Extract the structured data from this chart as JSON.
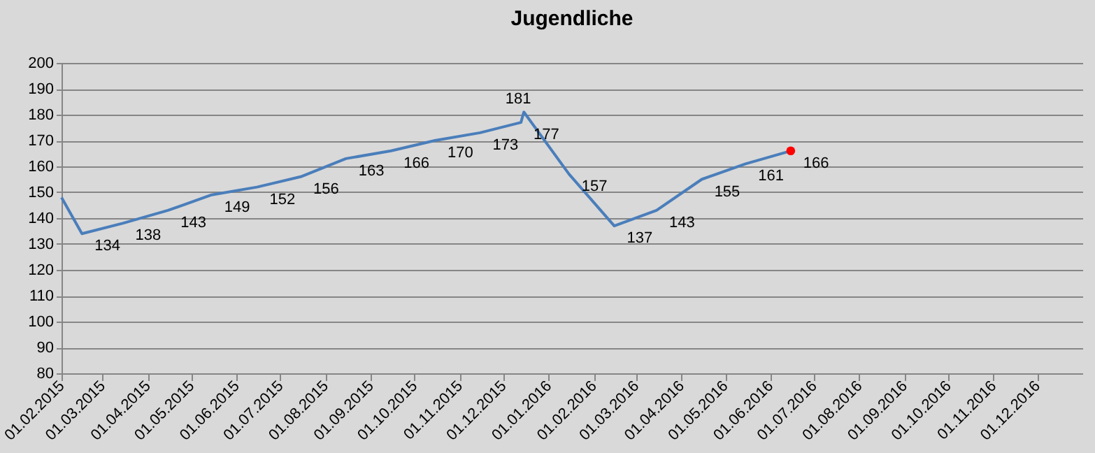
{
  "chart_data": {
    "type": "line",
    "title": "Jugendliche",
    "series": [
      {
        "color": "#4a7ebb",
        "x": [
          "2015-02-01",
          "2015-02-15",
          "2015-03-15",
          "2015-04-15",
          "2015-05-15",
          "2015-06-15",
          "2015-07-15",
          "2015-08-15",
          "2015-09-15",
          "2015-10-15",
          "2015-11-15",
          "2015-12-13",
          "2015-12-15",
          "2016-01-15",
          "2016-02-15",
          "2016-03-15",
          "2016-04-15",
          "2016-05-15",
          "2016-06-15"
        ],
        "values": [
          148,
          134,
          138,
          143,
          149,
          152,
          156,
          163,
          166,
          170,
          173,
          177,
          181,
          157,
          137,
          143,
          155,
          161,
          166
        ],
        "value_labels": [
          null,
          "134",
          "138",
          "143",
          "149",
          "152",
          "156",
          "163",
          "166",
          "170",
          "173",
          "177",
          "181",
          "157",
          "137",
          "143",
          "155",
          "161",
          null
        ]
      },
      {
        "type": "scatter",
        "color": "#ff0000",
        "marker": "circle",
        "x": [
          "2016-06-15"
        ],
        "values": [
          166
        ],
        "value_labels": [
          "166"
        ]
      }
    ],
    "xlim": [
      "2015-02-01",
      "2017-01-01"
    ],
    "xticks": [
      {
        "value": "2015-02-01",
        "label": "01.02.2015"
      },
      {
        "value": "2015-03-01",
        "label": "01.03.2015"
      },
      {
        "value": "2015-04-01",
        "label": "01.04.2015"
      },
      {
        "value": "2015-05-01",
        "label": "01.05.2015"
      },
      {
        "value": "2015-06-01",
        "label": "01.06.2015"
      },
      {
        "value": "2015-07-01",
        "label": "01.07.2015"
      },
      {
        "value": "2015-08-01",
        "label": "01.08.2015"
      },
      {
        "value": "2015-09-01",
        "label": "01.09.2015"
      },
      {
        "value": "2015-10-01",
        "label": "01.10.2015"
      },
      {
        "value": "2015-11-01",
        "label": "01.11.2015"
      },
      {
        "value": "2015-12-01",
        "label": "01.12.2015"
      },
      {
        "value": "2016-01-01",
        "label": "01.01.2016"
      },
      {
        "value": "2016-02-01",
        "label": "01.02.2016"
      },
      {
        "value": "2016-03-01",
        "label": "01.03.2016"
      },
      {
        "value": "2016-04-01",
        "label": "01.04.2016"
      },
      {
        "value": "2016-05-01",
        "label": "01.05.2016"
      },
      {
        "value": "2016-06-01",
        "label": "01.06.2016"
      },
      {
        "value": "2016-07-01",
        "label": "01.07.2016"
      },
      {
        "value": "2016-08-01",
        "label": "01.08.2016"
      },
      {
        "value": "2016-09-01",
        "label": "01.09.2016"
      },
      {
        "value": "2016-10-01",
        "label": "01.10.2016"
      },
      {
        "value": "2016-11-01",
        "label": "01.11.2016"
      },
      {
        "value": "2016-12-01",
        "label": "01.12.2016"
      }
    ],
    "ylim": [
      80,
      200
    ],
    "yticks": [
      80,
      90,
      100,
      110,
      120,
      130,
      140,
      150,
      160,
      170,
      180,
      190,
      200
    ],
    "grid": "y",
    "line_style": "solid"
  }
}
